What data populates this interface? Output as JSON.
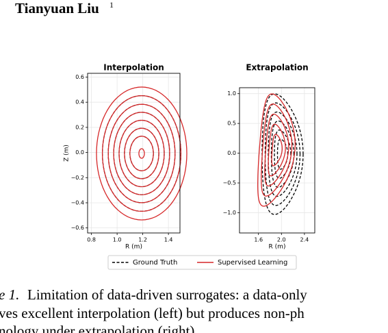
{
  "header": {
    "author": "Tianyuan Liu",
    "affiliation_mark": "1"
  },
  "chart_data": [
    {
      "type": "contour",
      "title": "Interpolation",
      "xlabel": "R (m)",
      "ylabel": "Z (m)",
      "xlim": [
        0.77,
        1.49
      ],
      "xticks": [
        0.8,
        {
          "value": 1,
          "label": "1.0"
        },
        1.2,
        1.4
      ],
      "ylim": [
        -0.64,
        0.63
      ],
      "yticks": [
        {
          "value": -0.6,
          "label": "−0.6"
        },
        {
          "value": -0.4,
          "label": "−0.4"
        },
        {
          "value": -0.2,
          "label": "−0.2"
        },
        {
          "value": 0,
          "label": "0.0"
        },
        0.2,
        0.4,
        0.6
      ],
      "grid": true,
      "series": [
        {
          "name": "Ground Truth",
          "color": "#000000"
        },
        {
          "name": "Supervised Learning",
          "color": "#d62728"
        }
      ]
    },
    {
      "type": "contour",
      "title": "Extrapolation",
      "xlabel": "R (m)",
      "xlim": [
        1.27,
        2.58
      ],
      "xticks": [
        1.6,
        {
          "value": 2,
          "label": "2.0"
        },
        2.4
      ],
      "ylim": [
        -1.34,
        1.1
      ],
      "yticks": [
        {
          "value": -1,
          "label": "−1.0"
        },
        {
          "value": -0.5,
          "label": "−0.5"
        },
        {
          "value": 0,
          "label": "0.0"
        },
        0.5,
        {
          "value": 1,
          "label": "1.0"
        }
      ],
      "grid": true
    }
  ],
  "caption": {
    "label": "e 1.",
    "lines": [
      "Limitation of data-driven surrogates: a data-only",
      "ves excellent interpolation (left) but produces non-ph",
      "nology under extrapolation (right)."
    ]
  }
}
